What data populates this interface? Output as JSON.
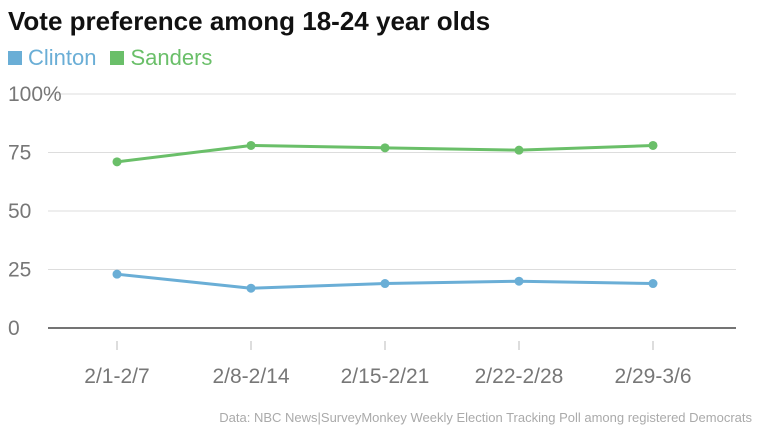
{
  "chart_data": {
    "type": "line",
    "title": "Vote preference among 18-24 year olds",
    "categories": [
      "2/1-2/7",
      "2/8-2/14",
      "2/15-2/21",
      "2/22-2/28",
      "2/29-3/6"
    ],
    "series": [
      {
        "name": "Clinton",
        "color": "#6aaed6",
        "values": [
          23,
          17,
          19,
          20,
          19
        ]
      },
      {
        "name": "Sanders",
        "color": "#6abf69",
        "values": [
          71,
          78,
          77,
          76,
          78
        ]
      }
    ],
    "ylim": [
      0,
      100
    ],
    "yticks": [
      "0",
      "25",
      "50",
      "75",
      "100%"
    ],
    "ytick_values": [
      0,
      25,
      50,
      75,
      100
    ],
    "grid": true,
    "legend_position": "top-left",
    "source": "Data: NBC News|SurveyMonkey Weekly Election Tracking Poll among registered Democrats"
  }
}
